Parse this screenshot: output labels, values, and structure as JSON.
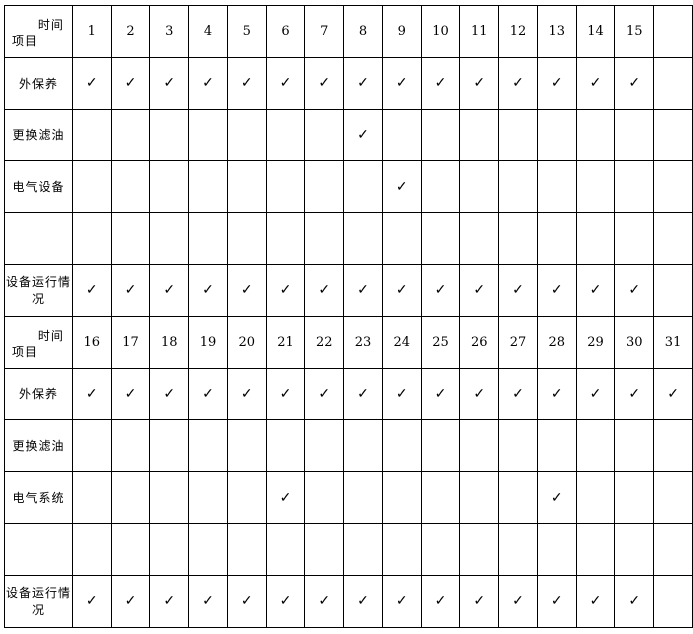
{
  "check_symbol": "✓",
  "header_time": "时间",
  "header_item": "项目",
  "blocks": [
    {
      "days": [
        "1",
        "2",
        "3",
        "4",
        "5",
        "6",
        "7",
        "8",
        "9",
        "10",
        "11",
        "12",
        "13",
        "14",
        "15",
        ""
      ],
      "rows": [
        {
          "label": "外保养",
          "checks": [
            1,
            1,
            1,
            1,
            1,
            1,
            1,
            1,
            1,
            1,
            1,
            1,
            1,
            1,
            1,
            0
          ]
        },
        {
          "label": "更换滤油",
          "checks": [
            0,
            0,
            0,
            0,
            0,
            0,
            0,
            1,
            0,
            0,
            0,
            0,
            0,
            0,
            0,
            0
          ]
        },
        {
          "label": "电气设备",
          "checks": [
            0,
            0,
            0,
            0,
            0,
            0,
            0,
            0,
            1,
            0,
            0,
            0,
            0,
            0,
            0,
            0
          ]
        },
        {
          "label": "",
          "checks": [
            0,
            0,
            0,
            0,
            0,
            0,
            0,
            0,
            0,
            0,
            0,
            0,
            0,
            0,
            0,
            0
          ]
        },
        {
          "label": "设备运行情况",
          "checks": [
            1,
            1,
            1,
            1,
            1,
            1,
            1,
            1,
            1,
            1,
            1,
            1,
            1,
            1,
            1,
            0
          ]
        }
      ]
    },
    {
      "days": [
        "16",
        "17",
        "18",
        "19",
        "20",
        "21",
        "22",
        "23",
        "24",
        "25",
        "26",
        "27",
        "28",
        "29",
        "30",
        "31"
      ],
      "rows": [
        {
          "label": "外保养",
          "checks": [
            1,
            1,
            1,
            1,
            1,
            1,
            1,
            1,
            1,
            1,
            1,
            1,
            1,
            1,
            1,
            1
          ]
        },
        {
          "label": "更换滤油",
          "checks": [
            0,
            0,
            0,
            0,
            0,
            0,
            0,
            0,
            0,
            0,
            0,
            0,
            0,
            0,
            0,
            0
          ]
        },
        {
          "label": "电气系统",
          "checks": [
            0,
            0,
            0,
            0,
            0,
            1,
            0,
            0,
            0,
            0,
            0,
            0,
            1,
            0,
            0,
            0
          ]
        },
        {
          "label": "",
          "checks": [
            0,
            0,
            0,
            0,
            0,
            0,
            0,
            0,
            0,
            0,
            0,
            0,
            0,
            0,
            0,
            0
          ]
        },
        {
          "label": "设备运行情况",
          "checks": [
            1,
            1,
            1,
            1,
            1,
            1,
            1,
            1,
            1,
            1,
            1,
            1,
            1,
            1,
            1,
            0
          ]
        }
      ]
    }
  ]
}
